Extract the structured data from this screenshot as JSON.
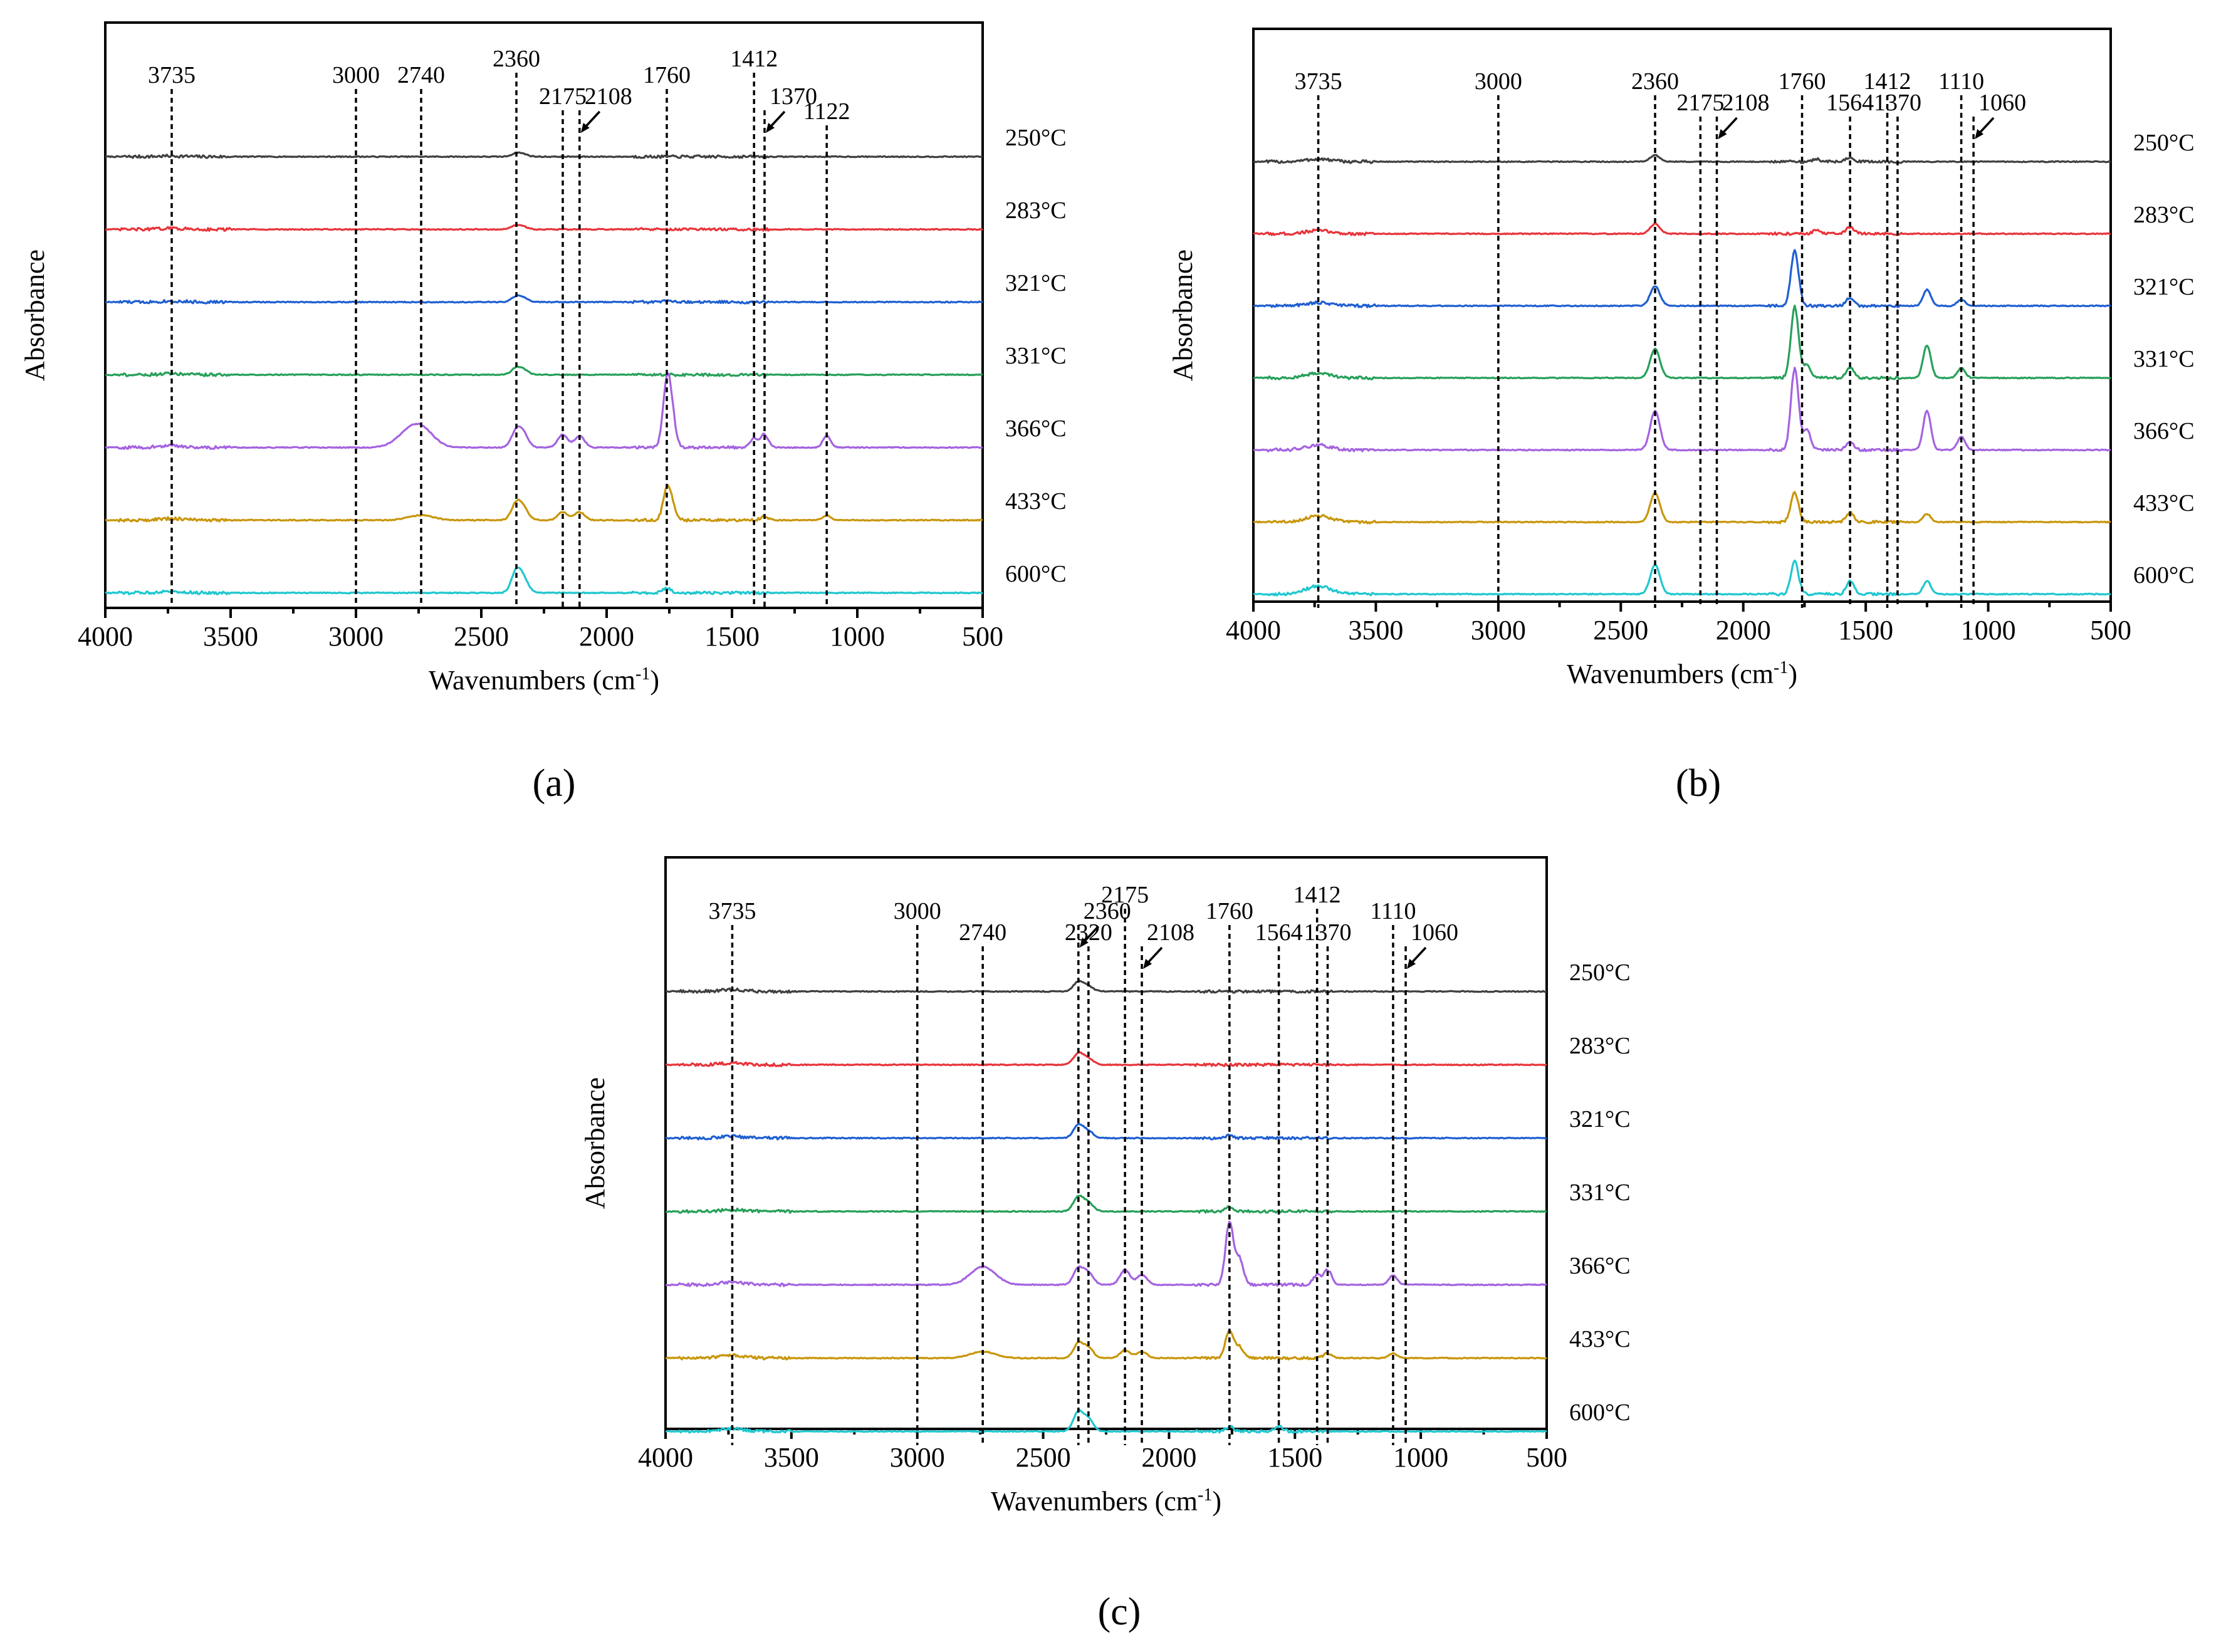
{
  "figure": {
    "xlabel_main": "Wavenumbers (cm",
    "xlabel_sup": "-1",
    "xlabel_close": ")",
    "ylabel": "Absorbance",
    "temperatures": [
      "250°C",
      "283°C",
      "321°C",
      "331°C",
      "366°C",
      "433°C",
      "600°C"
    ],
    "series_colors": [
      "#404040",
      "#e8343a",
      "#1f5fd1",
      "#27a05a",
      "#a463e0",
      "#c8960a",
      "#1fc7cf"
    ]
  },
  "chart_data": [
    {
      "type": "line",
      "panel_label": "(a)",
      "title": "",
      "xlabel": "Wavenumbers (cm-1)",
      "ylabel": "Absorbance",
      "xlim": [
        4000,
        500
      ],
      "xticks": [
        "4000",
        "3500",
        "3000",
        "2500",
        "2000",
        "1500",
        "1000",
        "500"
      ],
      "series_names": [
        "250°C",
        "283°C",
        "321°C",
        "331°C",
        "366°C",
        "433°C",
        "600°C"
      ],
      "series_peaks": [
        [
          [
            2360,
            0.1
          ],
          [
            2330,
            0.06
          ],
          [
            3735,
            0.02
          ]
        ],
        [
          [
            2360,
            0.12
          ],
          [
            2330,
            0.06
          ],
          [
            3735,
            0.03
          ]
        ],
        [
          [
            2360,
            0.16
          ],
          [
            2330,
            0.1
          ],
          [
            1760,
            0.03
          ],
          [
            3735,
            0.03
          ]
        ],
        [
          [
            2360,
            0.2
          ],
          [
            2330,
            0.12
          ],
          [
            3735,
            0.03
          ]
        ],
        [
          [
            2740,
            0.55
          ],
          [
            2800,
            0.3
          ],
          [
            2360,
            0.5
          ],
          [
            2330,
            0.35
          ],
          [
            2175,
            0.4
          ],
          [
            2108,
            0.35
          ],
          [
            1760,
            1.9
          ],
          [
            1740,
            0.8
          ],
          [
            1412,
            0.3
          ],
          [
            1370,
            0.4
          ],
          [
            1122,
            0.35
          ],
          [
            3735,
            0.05
          ]
        ],
        [
          [
            2740,
            0.15
          ],
          [
            2360,
            0.5
          ],
          [
            2330,
            0.3
          ],
          [
            2175,
            0.25
          ],
          [
            2108,
            0.25
          ],
          [
            1760,
            0.85
          ],
          [
            1740,
            0.4
          ],
          [
            1370,
            0.12
          ],
          [
            1122,
            0.15
          ],
          [
            3735,
            0.05
          ]
        ],
        [
          [
            2360,
            0.65
          ],
          [
            2330,
            0.35
          ],
          [
            1760,
            0.15
          ],
          [
            3735,
            0.05
          ]
        ]
      ],
      "annotations": [
        {
          "text": "3735",
          "x": 3735
        },
        {
          "text": "3000",
          "x": 3000
        },
        {
          "text": "2740",
          "x": 2740
        },
        {
          "text": "2360",
          "x": 2360
        },
        {
          "text": "2175",
          "x": 2175
        },
        {
          "text": "2108",
          "x": 2108
        },
        {
          "text": "1760",
          "x": 1760
        },
        {
          "text": "1412",
          "x": 1412
        },
        {
          "text": "1370",
          "x": 1370
        },
        {
          "text": "1122",
          "x": 1122
        }
      ]
    },
    {
      "type": "line",
      "panel_label": "(b)",
      "title": "",
      "xlabel": "Wavenumbers (cm-1)",
      "ylabel": "Absorbance",
      "xlim": [
        4000,
        500
      ],
      "xticks": [
        "4000",
        "3500",
        "3000",
        "2500",
        "2000",
        "1500",
        "1000",
        "500"
      ],
      "series_names": [
        "250°C",
        "283°C",
        "321°C",
        "331°C",
        "366°C",
        "433°C",
        "600°C"
      ],
      "series_peaks": [
        [
          [
            2360,
            0.2
          ],
          [
            1564,
            0.15
          ],
          [
            1700,
            0.08
          ],
          [
            3735,
            0.08
          ]
        ],
        [
          [
            2360,
            0.3
          ],
          [
            1564,
            0.2
          ],
          [
            1700,
            0.1
          ],
          [
            3735,
            0.1
          ]
        ],
        [
          [
            2360,
            0.6
          ],
          [
            1790,
            1.7
          ],
          [
            1564,
            0.25
          ],
          [
            1250,
            0.5
          ],
          [
            1110,
            0.2
          ],
          [
            3735,
            0.1
          ]
        ],
        [
          [
            2360,
            0.9
          ],
          [
            1790,
            2.2
          ],
          [
            1740,
            0.4
          ],
          [
            1564,
            0.3
          ],
          [
            1250,
            1.0
          ],
          [
            1110,
            0.3
          ],
          [
            3735,
            0.15
          ]
        ],
        [
          [
            2360,
            1.2
          ],
          [
            1790,
            2.5
          ],
          [
            1740,
            0.6
          ],
          [
            1564,
            0.25
          ],
          [
            1250,
            1.2
          ],
          [
            1110,
            0.4
          ],
          [
            3735,
            0.15
          ]
        ],
        [
          [
            2360,
            0.9
          ],
          [
            1790,
            0.9
          ],
          [
            1564,
            0.3
          ],
          [
            1250,
            0.25
          ],
          [
            3735,
            0.2
          ]
        ],
        [
          [
            2360,
            0.9
          ],
          [
            1790,
            1.0
          ],
          [
            1564,
            0.4
          ],
          [
            1250,
            0.4
          ],
          [
            3735,
            0.25
          ]
        ]
      ],
      "annotations": [
        {
          "text": "3735",
          "x": 3735
        },
        {
          "text": "3000",
          "x": 3000
        },
        {
          "text": "2360",
          "x": 2360
        },
        {
          "text": "2175",
          "x": 2175
        },
        {
          "text": "2108",
          "x": 2108
        },
        {
          "text": "1760",
          "x": 1760
        },
        {
          "text": "1564",
          "x": 1564
        },
        {
          "text": "1412",
          "x": 1412
        },
        {
          "text": "1370",
          "x": 1370
        },
        {
          "text": "1110",
          "x": 1110
        },
        {
          "text": "1060",
          "x": 1060
        }
      ]
    },
    {
      "type": "line",
      "panel_label": "(c)",
      "title": "",
      "xlabel": "Wavenumbers (cm-1)",
      "ylabel": "Absorbance",
      "xlim": [
        4000,
        500
      ],
      "xticks": [
        "4000",
        "3500",
        "3000",
        "2500",
        "2000",
        "1500",
        "1000",
        "500"
      ],
      "series_names": [
        "250°C",
        "283°C",
        "321°C",
        "331°C",
        "366°C",
        "433°C",
        "600°C"
      ],
      "series_peaks": [
        [
          [
            2360,
            0.3
          ],
          [
            2320,
            0.15
          ],
          [
            3735,
            0.05
          ]
        ],
        [
          [
            2360,
            0.35
          ],
          [
            2320,
            0.18
          ],
          [
            3735,
            0.05
          ]
        ],
        [
          [
            2360,
            0.4
          ],
          [
            2320,
            0.2
          ],
          [
            1760,
            0.08
          ],
          [
            3735,
            0.05
          ]
        ],
        [
          [
            2360,
            0.45
          ],
          [
            2320,
            0.25
          ],
          [
            1760,
            0.15
          ],
          [
            3735,
            0.05
          ]
        ],
        [
          [
            2740,
            0.55
          ],
          [
            2360,
            0.5
          ],
          [
            2320,
            0.35
          ],
          [
            2175,
            0.45
          ],
          [
            2108,
            0.3
          ],
          [
            1760,
            1.9
          ],
          [
            1720,
            0.8
          ],
          [
            1412,
            0.3
          ],
          [
            1370,
            0.45
          ],
          [
            1110,
            0.3
          ],
          [
            3735,
            0.08
          ]
        ],
        [
          [
            2740,
            0.2
          ],
          [
            2360,
            0.45
          ],
          [
            2320,
            0.3
          ],
          [
            2175,
            0.25
          ],
          [
            2108,
            0.2
          ],
          [
            1760,
            0.85
          ],
          [
            1720,
            0.35
          ],
          [
            1370,
            0.15
          ],
          [
            1110,
            0.15
          ],
          [
            3735,
            0.08
          ]
        ],
        [
          [
            2360,
            0.6
          ],
          [
            2320,
            0.35
          ],
          [
            1760,
            0.15
          ],
          [
            1564,
            0.15
          ],
          [
            3735,
            0.08
          ]
        ]
      ],
      "annotations": [
        {
          "text": "3735",
          "x": 3735
        },
        {
          "text": "3000",
          "x": 3000
        },
        {
          "text": "2740",
          "x": 2740
        },
        {
          "text": "2360",
          "x": 2360
        },
        {
          "text": "2320",
          "x": 2320
        },
        {
          "text": "2175",
          "x": 2175
        },
        {
          "text": "2108",
          "x": 2108
        },
        {
          "text": "1760",
          "x": 1760
        },
        {
          "text": "1564",
          "x": 1564
        },
        {
          "text": "1412",
          "x": 1412
        },
        {
          "text": "1370",
          "x": 1370
        },
        {
          "text": "1110",
          "x": 1110
        },
        {
          "text": "1060",
          "x": 1060
        }
      ]
    }
  ]
}
